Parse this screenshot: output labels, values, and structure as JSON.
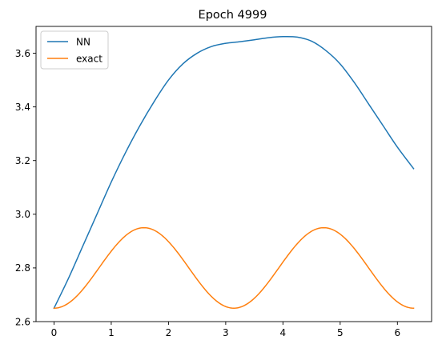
{
  "chart_data": {
    "type": "line",
    "title": "Epoch 4999",
    "xlabel": "",
    "ylabel": "",
    "xlim": [
      -0.3142,
      6.5974
    ],
    "ylim": [
      2.6,
      3.7
    ],
    "xticks": [
      0,
      1,
      2,
      3,
      4,
      5,
      6
    ],
    "xtick_labels": [
      "0",
      "1",
      "2",
      "3",
      "4",
      "5",
      "6"
    ],
    "yticks": [
      2.6,
      2.8,
      3.0,
      3.2,
      3.4,
      3.6
    ],
    "ytick_labels": [
      "2.6",
      "2.8",
      "3.0",
      "3.2",
      "3.4",
      "3.6"
    ],
    "grid": false,
    "legend_position": "top-left",
    "series": [
      {
        "name": "NN",
        "color": "#1f77b4",
        "x": [
          0,
          0.25,
          0.5,
          0.75,
          1.0,
          1.25,
          1.5,
          1.75,
          2.0,
          2.25,
          2.5,
          2.75,
          3.0,
          3.25,
          3.5,
          3.75,
          4.0,
          4.25,
          4.5,
          4.75,
          5.0,
          5.25,
          5.5,
          5.75,
          6.0,
          6.283
        ],
        "y": [
          2.65,
          2.76,
          2.88,
          3.0,
          3.12,
          3.23,
          3.33,
          3.42,
          3.5,
          3.56,
          3.6,
          3.625,
          3.637,
          3.643,
          3.65,
          3.658,
          3.662,
          3.66,
          3.645,
          3.61,
          3.56,
          3.49,
          3.41,
          3.33,
          3.25,
          3.17
        ]
      },
      {
        "name": "exact",
        "color": "#ff7f0e",
        "function": "2.65 + 0.3 * sin(x)^2",
        "x_range": [
          0,
          6.283
        ]
      }
    ]
  }
}
